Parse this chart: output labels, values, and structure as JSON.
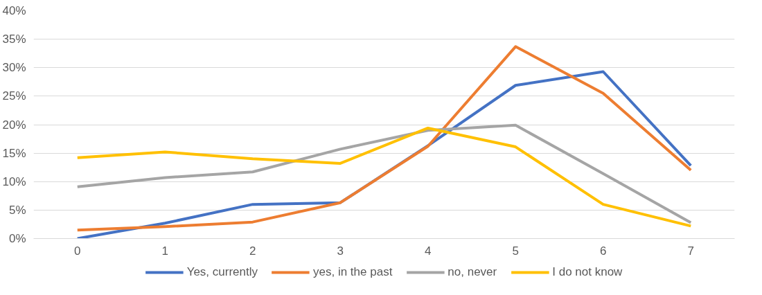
{
  "chart_data": {
    "type": "line",
    "categories": [
      "0",
      "1",
      "2",
      "3",
      "4",
      "5",
      "6",
      "7"
    ],
    "series": [
      {
        "name": "Yes, currently",
        "color": "#4472c4",
        "values": [
          0,
          2.7,
          6.0,
          6.3,
          16.3,
          26.9,
          29.3,
          12.8
        ]
      },
      {
        "name": "yes, in the past",
        "color": "#ed7d31",
        "values": [
          1.5,
          2.1,
          2.9,
          6.3,
          16.2,
          33.7,
          25.5,
          12.0
        ]
      },
      {
        "name": "no, never",
        "color": "#a5a5a5",
        "values": [
          9.1,
          10.7,
          11.7,
          15.7,
          19.0,
          19.9,
          11.4,
          2.8
        ]
      },
      {
        "name": "I do not know",
        "color": "#ffc000",
        "values": [
          14.2,
          15.2,
          14.0,
          13.2,
          19.4,
          16.1,
          6.0,
          2.2
        ]
      }
    ],
    "ylim": [
      0,
      40
    ],
    "yticks": [
      {
        "value": 0,
        "label": "0%"
      },
      {
        "value": 5,
        "label": "5%"
      },
      {
        "value": 10,
        "label": "10%"
      },
      {
        "value": 15,
        "label": "15%"
      },
      {
        "value": 20,
        "label": "20%"
      },
      {
        "value": 25,
        "label": "25%"
      },
      {
        "value": 30,
        "label": "30%"
      },
      {
        "value": 35,
        "label": "35%"
      },
      {
        "value": 40,
        "label": "40%"
      }
    ],
    "grid": "y",
    "legend": "bottom",
    "marker": "none",
    "line_style": "solid"
  }
}
